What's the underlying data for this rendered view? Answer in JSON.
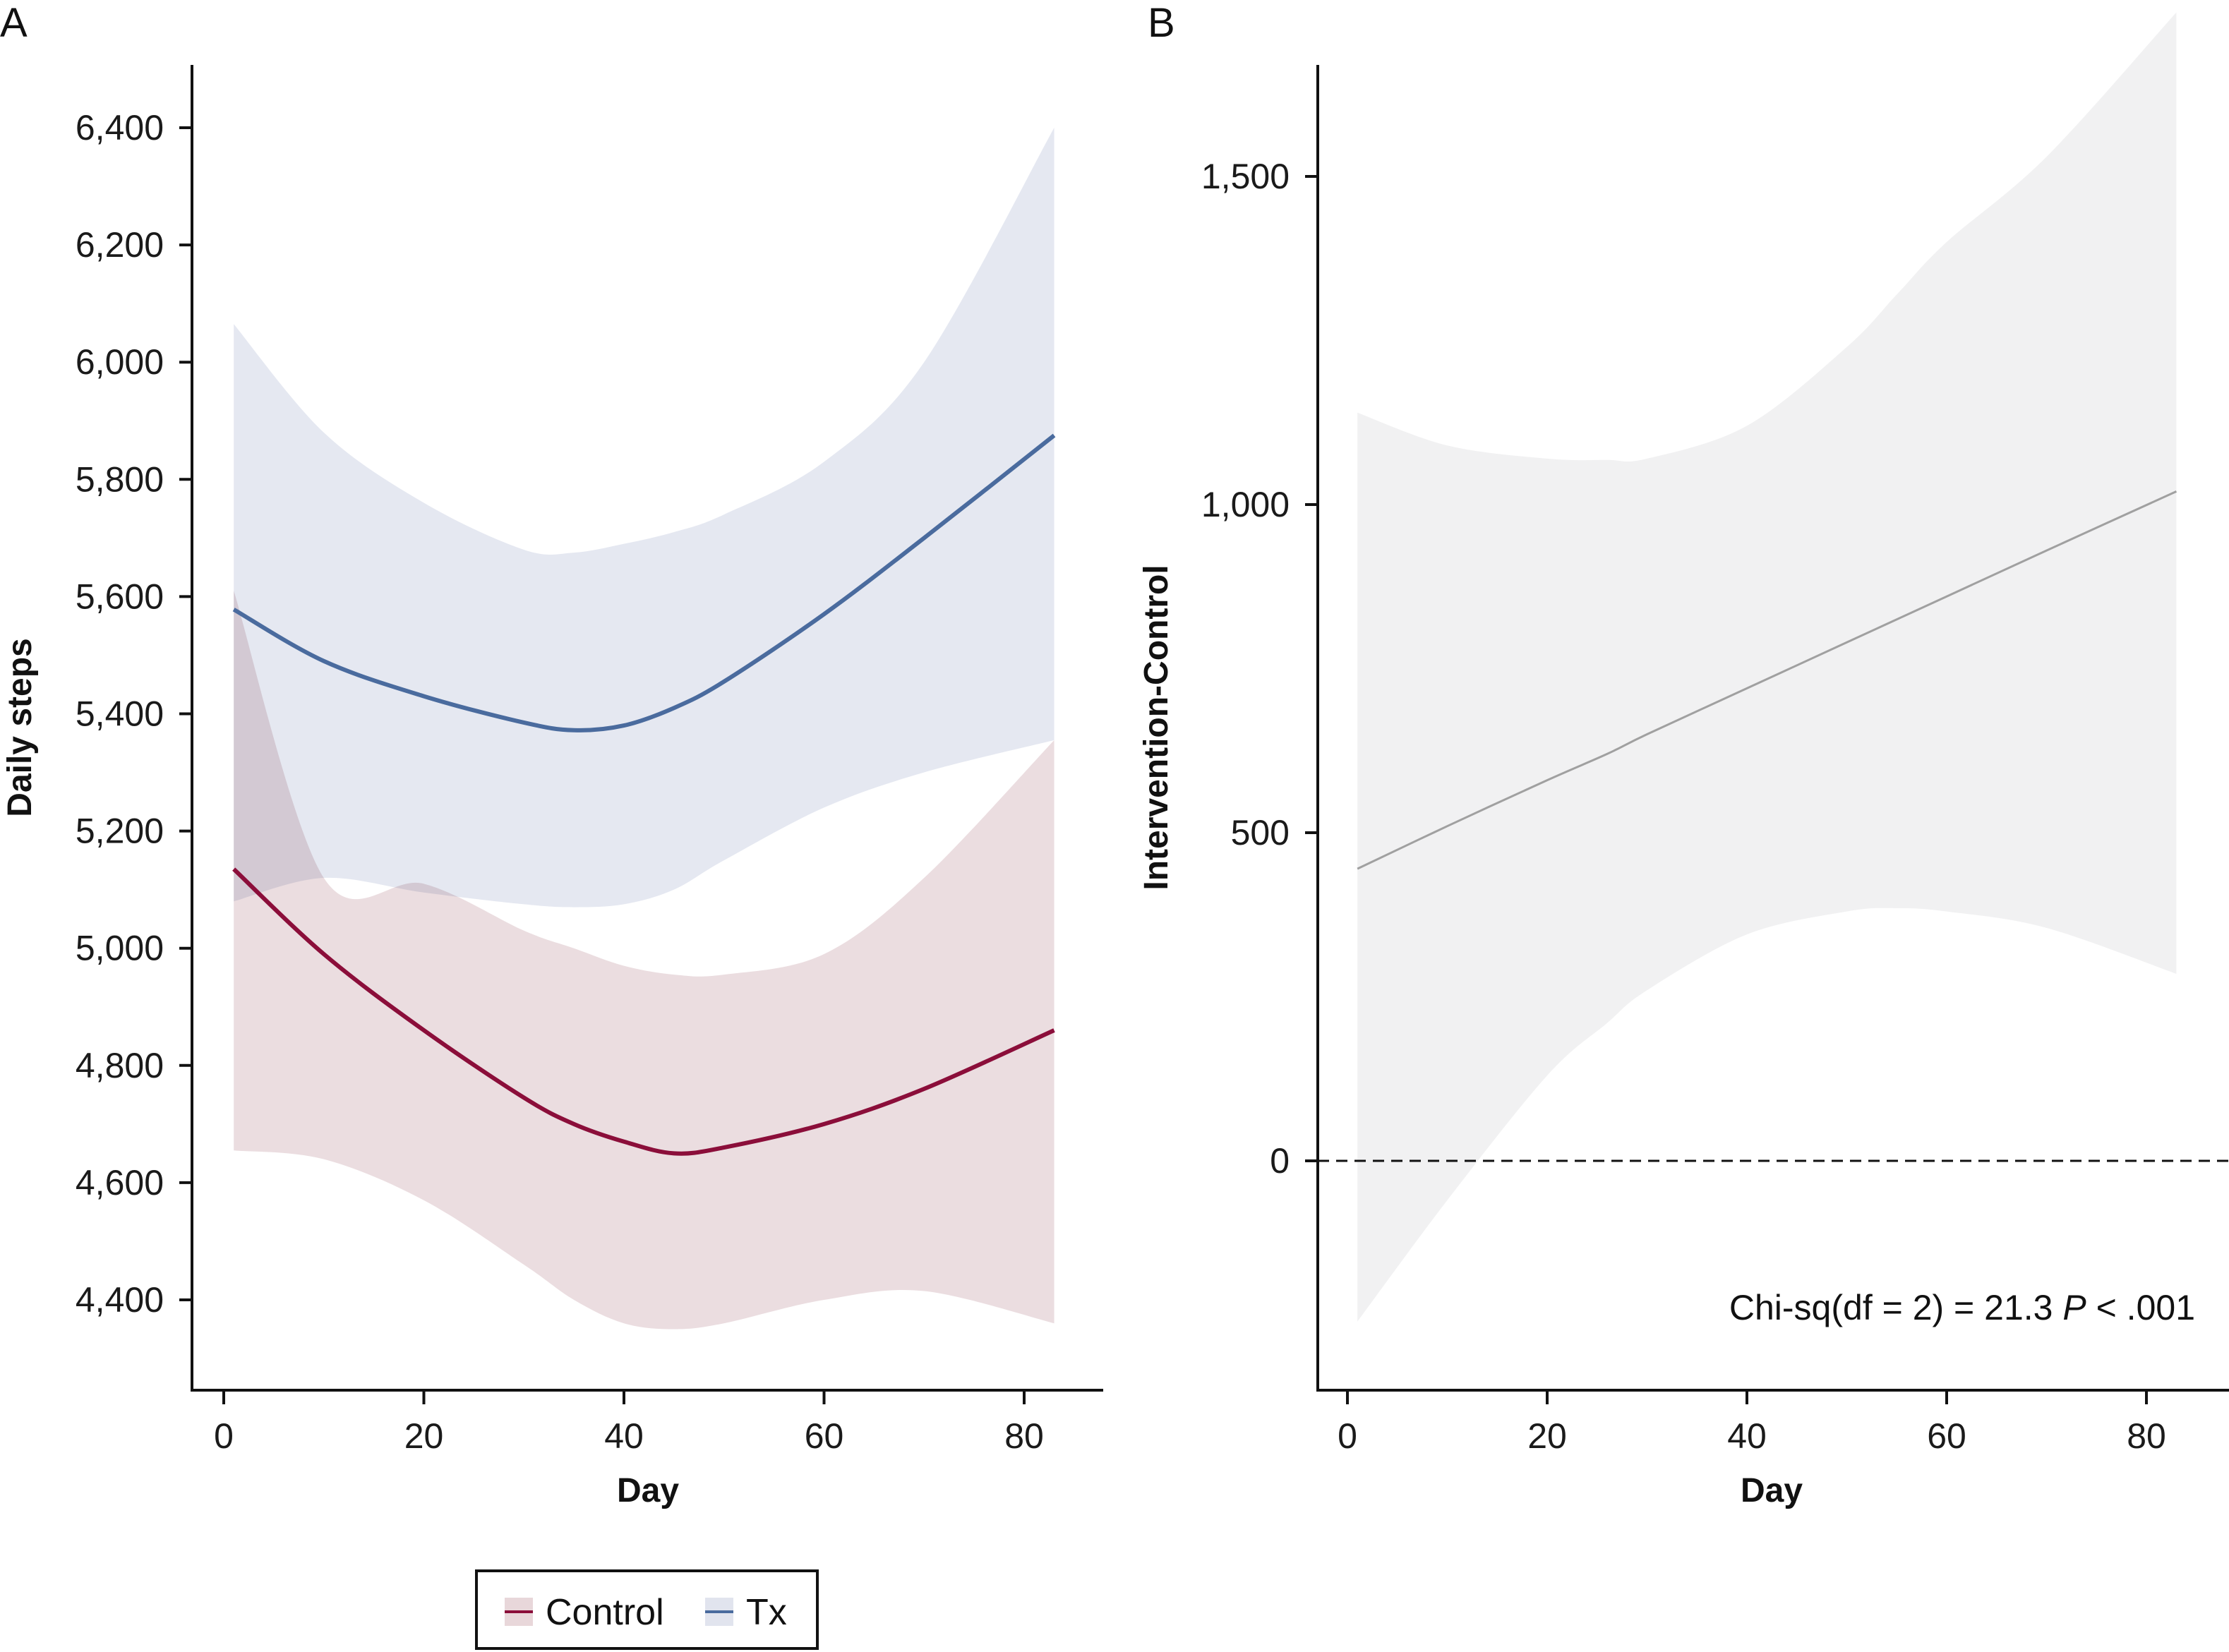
{
  "chart_data": [
    {
      "panel": "A",
      "type": "line",
      "title": "",
      "xlabel": "Day",
      "ylabel": "Daily steps",
      "xlim": [
        0,
        84
      ],
      "ylim": [
        4250,
        6510
      ],
      "xticks": [
        0,
        20,
        40,
        60,
        80
      ],
      "xtick_labels": [
        "0",
        "20",
        "40",
        "60",
        "80"
      ],
      "yticks": [
        4400,
        4600,
        4800,
        5000,
        5200,
        5400,
        5600,
        5800,
        6000,
        6200,
        6400
      ],
      "ytick_labels": [
        "4,400",
        "4,600",
        "4,800",
        "5,000",
        "5,200",
        "5,400",
        "5,600",
        "5,800",
        "6,000",
        "6,200",
        "6,400"
      ],
      "grid": false,
      "legend": {
        "placement": "bottom",
        "entries": [
          "Control",
          "Tx"
        ]
      },
      "x": [
        1,
        10,
        20,
        30,
        35,
        40,
        45,
        50,
        60,
        70,
        83
      ],
      "series": [
        {
          "name": "Tx",
          "color": "#4a6b9e",
          "band_color": "#e1e4ee",
          "values": [
            5578,
            5490,
            5430,
            5385,
            5372,
            5380,
            5410,
            5455,
            5570,
            5700,
            5875
          ],
          "lower": [
            5080,
            5120,
            5095,
            5075,
            5070,
            5075,
            5100,
            5150,
            5240,
            5300,
            5355
          ],
          "upper": [
            6065,
            5880,
            5760,
            5680,
            5675,
            5690,
            5710,
            5740,
            5830,
            6000,
            6400
          ]
        },
        {
          "name": "Control",
          "color": "#8b0e3a",
          "band_color": "#e8d7da",
          "values": [
            5135,
            4990,
            4860,
            4745,
            4700,
            4670,
            4650,
            4660,
            4700,
            4760,
            4860
          ],
          "lower": [
            4655,
            4640,
            4570,
            4460,
            4400,
            4360,
            4350,
            4360,
            4400,
            4415,
            4360
          ],
          "upper": [
            5610,
            5120,
            5110,
            5030,
            5000,
            4970,
            4955,
            4955,
            4990,
            5120,
            5355
          ]
        }
      ]
    },
    {
      "panel": "B",
      "type": "line",
      "title": "",
      "xlabel": "Day",
      "ylabel": "Intervention-Control",
      "xlim": [
        -3,
        88
      ],
      "ylim": [
        -350,
        1710
      ],
      "xticks": [
        0,
        20,
        40,
        60,
        80
      ],
      "xtick_labels": [
        "0",
        "20",
        "40",
        "60",
        "80"
      ],
      "yticks": [
        0,
        500,
        1000,
        1500
      ],
      "ytick_labels": [
        "0",
        "500",
        "1,000",
        "1,500"
      ],
      "grid": false,
      "reference_line": {
        "y": 0,
        "style": "dashed"
      },
      "annotation": {
        "text_prefix": "Chi-sq(df = 2) = 21.3 ",
        "text_italic": "P",
        "text_suffix": " < .001",
        "placement": "bottom-right"
      },
      "x": [
        1,
        10,
        20,
        26,
        30,
        40,
        50,
        55,
        60,
        70,
        83
      ],
      "series": [
        {
          "name": "Intervention-Control",
          "color": "#a0a0a0",
          "band_color": "#eeeef0",
          "values": [
            445,
            510,
            580,
            620,
            650,
            720,
            790,
            825,
            860,
            930,
            1020
          ],
          "lower": [
            -245,
            -60,
            130,
            210,
            260,
            345,
            380,
            385,
            380,
            355,
            285
          ],
          "upper": [
            1140,
            1090,
            1070,
            1068,
            1070,
            1120,
            1240,
            1320,
            1400,
            1530,
            1750
          ]
        }
      ]
    }
  ],
  "panel_labels": {
    "a": "A",
    "b": "B"
  },
  "legend": {
    "control": "Control",
    "tx": "Tx"
  }
}
